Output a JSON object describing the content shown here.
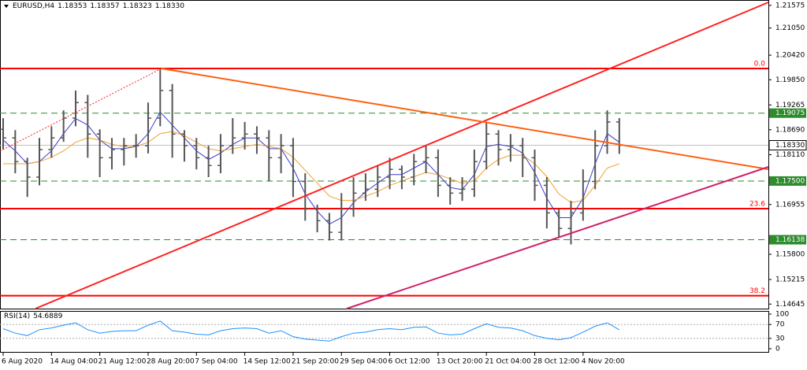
{
  "chart_data": {
    "type": "ohlc",
    "symbol": "EURUSD,H4",
    "quote": [
      1.18353,
      1.18357,
      1.18323,
      {
        "value": 1.1833,
        "label": "1.18330"
      }
    ],
    "categories": [
      "6 Aug 2020",
      null,
      null,
      null,
      "14 Aug 04:00",
      null,
      null,
      null,
      "21 Aug 12:00",
      null,
      null,
      null,
      "28 Aug 20:00",
      null,
      null,
      null,
      "7 Sep 04:00",
      null,
      null,
      null,
      "14 Sep 12:00",
      null,
      null,
      null,
      "21 Sep 20:00",
      null,
      null,
      null,
      "29 Sep 04:00",
      null,
      null,
      null,
      "6 Oct 12:00",
      null,
      null,
      null,
      "13 Oct 20:00",
      null,
      null,
      null,
      "21 Oct 04:00",
      null,
      null,
      null,
      "28 Oct 12:00",
      null,
      null,
      null,
      "4 Nov 20:00",
      null,
      null,
      null
    ],
    "open": [
      1.187,
      1.185,
      1.1795,
      1.1759,
      1.1823,
      1.185,
      1.1896,
      1.1932,
      1.1859,
      1.1804,
      1.1823,
      1.1832,
      1.1832,
      1.1896,
      1.196,
      1.1859,
      1.1832,
      1.1804,
      1.1786,
      1.1832,
      1.185,
      1.1859,
      1.185,
      1.1804,
      1.1832,
      1.1749,
      1.1685,
      1.1658,
      1.1631,
      1.1685,
      1.1722,
      1.1731,
      1.1759,
      1.1777,
      1.1759,
      1.1795,
      1.1804,
      1.174,
      1.1722,
      1.1731,
      1.1795,
      1.1859,
      1.1823,
      1.1832,
      1.1804,
      1.174,
      1.1676,
      1.164,
      1.1676,
      1.1749,
      1.1832,
      1.1887
    ],
    "high": [
      1.1896,
      1.1868,
      1.1804,
      1.185,
      1.1877,
      1.1914,
      1.196,
      1.195,
      1.187,
      1.185,
      1.185,
      1.1859,
      1.1932,
      1.2011,
      1.1975,
      1.1868,
      1.185,
      1.1832,
      1.1859,
      1.1896,
      1.1887,
      1.1877,
      1.1868,
      1.1859,
      1.185,
      1.1768,
      1.1695,
      1.1676,
      1.1722,
      1.1759,
      1.1768,
      1.1786,
      1.1804,
      1.1786,
      1.1813,
      1.1832,
      1.1823,
      1.1759,
      1.1759,
      1.1823,
      1.1887,
      1.1868,
      1.1859,
      1.185,
      1.1823,
      1.1759,
      1.1685,
      1.1704,
      1.1777,
      1.1868,
      1.1914,
      1.1896
    ],
    "low": [
      1.1823,
      1.1768,
      1.1713,
      1.174,
      1.1804,
      1.1841,
      1.1877,
      1.1804,
      1.1759,
      1.1777,
      1.1786,
      1.1804,
      1.1814,
      1.1877,
      1.1804,
      1.1795,
      1.1777,
      1.1759,
      1.1768,
      1.1813,
      1.1823,
      1.1813,
      1.1749,
      1.1768,
      1.1713,
      1.1658,
      1.1631,
      1.1612,
      1.1612,
      1.1667,
      1.1704,
      1.1713,
      1.1731,
      1.1731,
      1.174,
      1.1768,
      1.1713,
      1.1695,
      1.1704,
      1.1713,
      1.1777,
      1.1786,
      1.1795,
      1.1759,
      1.1704,
      1.164,
      1.1621,
      1.1603,
      1.1658,
      1.1731,
      1.1813,
      1.1813
    ],
    "close": [
      1.185,
      1.1795,
      1.1759,
      1.1823,
      1.185,
      1.1896,
      1.1932,
      1.1859,
      1.1804,
      1.1823,
      1.1832,
      1.1832,
      1.1896,
      1.196,
      1.1859,
      1.1832,
      1.1804,
      1.1786,
      1.1832,
      1.185,
      1.1859,
      1.185,
      1.1804,
      1.1832,
      1.1749,
      1.1685,
      1.1658,
      1.1631,
      1.1685,
      1.1722,
      1.1731,
      1.1759,
      1.1777,
      1.1759,
      1.1795,
      1.1804,
      1.174,
      1.1722,
      1.1731,
      1.1795,
      1.1859,
      1.1823,
      1.1832,
      1.1804,
      1.174,
      1.1676,
      1.164,
      1.1676,
      1.1749,
      1.1832,
      1.1887,
      1.1833
    ],
    "bar_color": "#555555",
    "series": [
      {
        "color": "#3a3ad0",
        "values": [
          1.1845,
          1.182,
          1.179,
          1.1795,
          1.182,
          1.186,
          1.1895,
          1.188,
          1.1845,
          1.1825,
          1.1825,
          1.183,
          1.186,
          1.191,
          1.188,
          1.185,
          1.182,
          1.18,
          1.1815,
          1.1835,
          1.185,
          1.185,
          1.1825,
          1.1825,
          1.178,
          1.172,
          1.168,
          1.165,
          1.1665,
          1.17,
          1.1725,
          1.1745,
          1.1765,
          1.1765,
          1.178,
          1.1795,
          1.1765,
          1.1735,
          1.173,
          1.1765,
          1.183,
          1.1835,
          1.183,
          1.1815,
          1.177,
          1.171,
          1.1665,
          1.1665,
          1.171,
          1.179,
          1.186,
          1.184
        ]
      },
      {
        "color": "#f0a030",
        "values": [
          1.179,
          1.179,
          1.179,
          1.1795,
          1.1805,
          1.182,
          1.184,
          1.185,
          1.1845,
          1.1835,
          1.183,
          1.183,
          1.184,
          1.186,
          1.1865,
          1.1855,
          1.184,
          1.1825,
          1.182,
          1.1825,
          1.183,
          1.1835,
          1.183,
          1.1825,
          1.1805,
          1.1775,
          1.1745,
          1.1715,
          1.1705,
          1.1705,
          1.1715,
          1.1725,
          1.174,
          1.175,
          1.176,
          1.177,
          1.1765,
          1.1755,
          1.1745,
          1.175,
          1.178,
          1.18,
          1.181,
          1.181,
          1.179,
          1.176,
          1.172,
          1.17,
          1.1705,
          1.174,
          1.178,
          1.179
        ]
      }
    ],
    "ylim": [
      1.1454,
      1.217
    ],
    "yticks": [
      1.21575,
      {
        "value": 1.2105,
        "label": "1.21050"
      },
      {
        "value": 1.2042,
        "label": "1.20420"
      },
      {
        "value": 1.1985,
        "label": "1.19850"
      },
      1.19265,
      {
        "value": 1.1869,
        "label": "1.18690"
      },
      {
        "value": 1.1811,
        "label": "1.18110"
      },
      1.16955,
      {
        "value": 1.158,
        "label": "1.15800"
      },
      1.15215,
      1.14645
    ],
    "levels": [
      1.19075,
      {
        "value": 1.175,
        "label": "1.17500"
      },
      1.16138
    ],
    "level_color": "#2e8b2e",
    "fibo": [
      {
        "label": "0.0",
        "price": 1.2011
      },
      {
        "label": "23.6",
        "price": 1.1686
      },
      {
        "label": "38.2",
        "price": 1.1484
      }
    ],
    "fibo_color": "#ff0000",
    "rsi": {
      "name": "RSI(14)",
      "color": "#1e90ff",
      "ylim": [
        0,
        100
      ],
      "yticks": [
        100,
        70,
        30,
        0
      ],
      "values": [
        58,
        45,
        38,
        55,
        60,
        68,
        75,
        55,
        45,
        50,
        52,
        52,
        68,
        80,
        52,
        48,
        42,
        40,
        52,
        58,
        60,
        58,
        45,
        52,
        35,
        28,
        25,
        22,
        35,
        45,
        48,
        55,
        58,
        55,
        62,
        63,
        45,
        40,
        42,
        58,
        72,
        62,
        60,
        52,
        38,
        30,
        26,
        32,
        48,
        65,
        75,
        54.6889
      ]
    }
  }
}
